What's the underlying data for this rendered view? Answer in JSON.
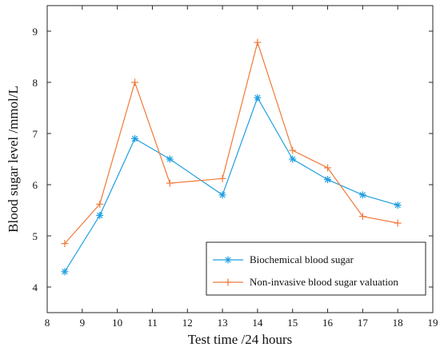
{
  "chart_data": {
    "type": "line",
    "title": "",
    "xlabel": "Test time /24 hours",
    "ylabel": "Blood sugar level /mmol/L",
    "xlim": [
      8,
      19
    ],
    "ylim": [
      3.5,
      9.5
    ],
    "xticks": [
      8,
      9,
      10,
      11,
      12,
      13,
      14,
      15,
      16,
      17,
      18,
      19
    ],
    "yticks": [
      4,
      5,
      6,
      7,
      8,
      9
    ],
    "grid": false,
    "legend_position": "bottom-right",
    "series": [
      {
        "name": "Biochemical blood sugar",
        "color": "#1f9fe0",
        "marker": "asterisk",
        "x": [
          8.5,
          9.5,
          10.5,
          11.5,
          13,
          14,
          15,
          16,
          17,
          18
        ],
        "y": [
          4.3,
          5.4,
          6.9,
          6.5,
          5.8,
          7.7,
          6.5,
          6.1,
          5.8,
          5.6
        ]
      },
      {
        "name": "Non-invasive blood sugar valuation",
        "color": "#f07a3a",
        "marker": "plus",
        "x": [
          8.5,
          9.5,
          10.5,
          11.5,
          13,
          14,
          15,
          16,
          17,
          18
        ],
        "y": [
          4.85,
          5.62,
          8.0,
          6.03,
          6.12,
          8.78,
          6.67,
          6.33,
          5.38,
          5.25
        ]
      }
    ]
  }
}
